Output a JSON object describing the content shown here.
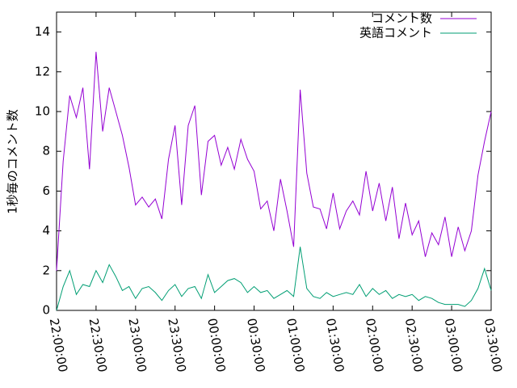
{
  "chart_data": {
    "type": "line",
    "y_label": "1秒毎のコメント数",
    "x": [
      "22:00:00",
      "22:05:00",
      "22:10:00",
      "22:15:00",
      "22:20:00",
      "22:25:00",
      "22:30:00",
      "22:35:00",
      "22:40:00",
      "22:45:00",
      "22:50:00",
      "22:55:00",
      "23:00:00",
      "23:05:00",
      "23:10:00",
      "23:15:00",
      "23:20:00",
      "23:25:00",
      "23:30:00",
      "23:35:00",
      "23:40:00",
      "23:45:00",
      "23:50:00",
      "23:55:00",
      "00:00:00",
      "00:05:00",
      "00:10:00",
      "00:15:00",
      "00:20:00",
      "00:25:00",
      "00:30:00",
      "00:35:00",
      "00:40:00",
      "00:45:00",
      "00:50:00",
      "00:55:00",
      "01:00:00",
      "01:05:00",
      "01:10:00",
      "01:15:00",
      "01:20:00",
      "01:25:00",
      "01:30:00",
      "01:35:00",
      "01:40:00",
      "01:45:00",
      "01:50:00",
      "01:55:00",
      "02:00:00",
      "02:05:00",
      "02:10:00",
      "02:15:00",
      "02:20:00",
      "02:25:00",
      "02:30:00",
      "02:35:00",
      "02:40:00",
      "02:45:00",
      "02:50:00",
      "02:55:00",
      "03:00:00",
      "03:05:00",
      "03:10:00",
      "03:15:00",
      "03:20:00",
      "03:25:00",
      "03:30:00"
    ],
    "series": [
      {
        "name": "コメント数",
        "color": "#9400d3",
        "values": [
          2.0,
          7.5,
          10.8,
          9.7,
          11.2,
          7.1,
          13.0,
          9.0,
          11.2,
          10.0,
          8.8,
          7.2,
          5.3,
          5.7,
          5.2,
          5.6,
          4.6,
          7.6,
          9.3,
          5.3,
          9.3,
          10.3,
          5.8,
          8.5,
          8.8,
          7.3,
          8.2,
          7.1,
          8.6,
          7.6,
          7.0,
          5.1,
          5.5,
          4.0,
          6.6,
          5.0,
          3.2,
          11.1,
          6.9,
          5.2,
          5.1,
          4.1,
          5.9,
          4.1,
          5.0,
          5.5,
          4.8,
          7.0,
          5.0,
          6.4,
          4.5,
          6.2,
          3.6,
          5.4,
          3.8,
          4.5,
          2.7,
          3.9,
          3.3,
          4.7,
          2.7,
          4.2,
          3.0,
          4.0,
          6.8,
          8.5,
          10.0
        ]
      },
      {
        "name": "英語コメント",
        "color": "#009e73",
        "values": [
          0.0,
          1.2,
          2.0,
          0.8,
          1.3,
          1.2,
          2.0,
          1.4,
          2.3,
          1.7,
          1.0,
          1.2,
          0.6,
          1.1,
          1.2,
          0.9,
          0.5,
          1.0,
          1.3,
          0.7,
          1.1,
          1.2,
          0.6,
          1.8,
          0.9,
          1.2,
          1.5,
          1.6,
          1.4,
          0.9,
          1.2,
          0.9,
          1.0,
          0.6,
          0.8,
          1.0,
          0.7,
          3.2,
          1.1,
          0.7,
          0.6,
          0.9,
          0.7,
          0.8,
          0.9,
          0.8,
          1.3,
          0.7,
          1.1,
          0.8,
          1.0,
          0.6,
          0.8,
          0.7,
          0.8,
          0.5,
          0.7,
          0.6,
          0.4,
          0.3,
          0.3,
          0.3,
          0.2,
          0.5,
          1.1,
          2.1,
          1.0
        ]
      }
    ],
    "xlim": [
      "22:00:00",
      "03:30:00"
    ],
    "xticks": [
      "22:00:00",
      "22:30:00",
      "23:00:00",
      "23:30:00",
      "00:00:00",
      "00:30:00",
      "01:00:00",
      "01:30:00",
      "02:00:00",
      "02:30:00",
      "03:00:00",
      "03:30:00"
    ],
    "ylim": [
      0,
      15
    ],
    "yticks": [
      0,
      2,
      4,
      6,
      8,
      10,
      12,
      14
    ],
    "grid": false,
    "legend": "top-right"
  }
}
